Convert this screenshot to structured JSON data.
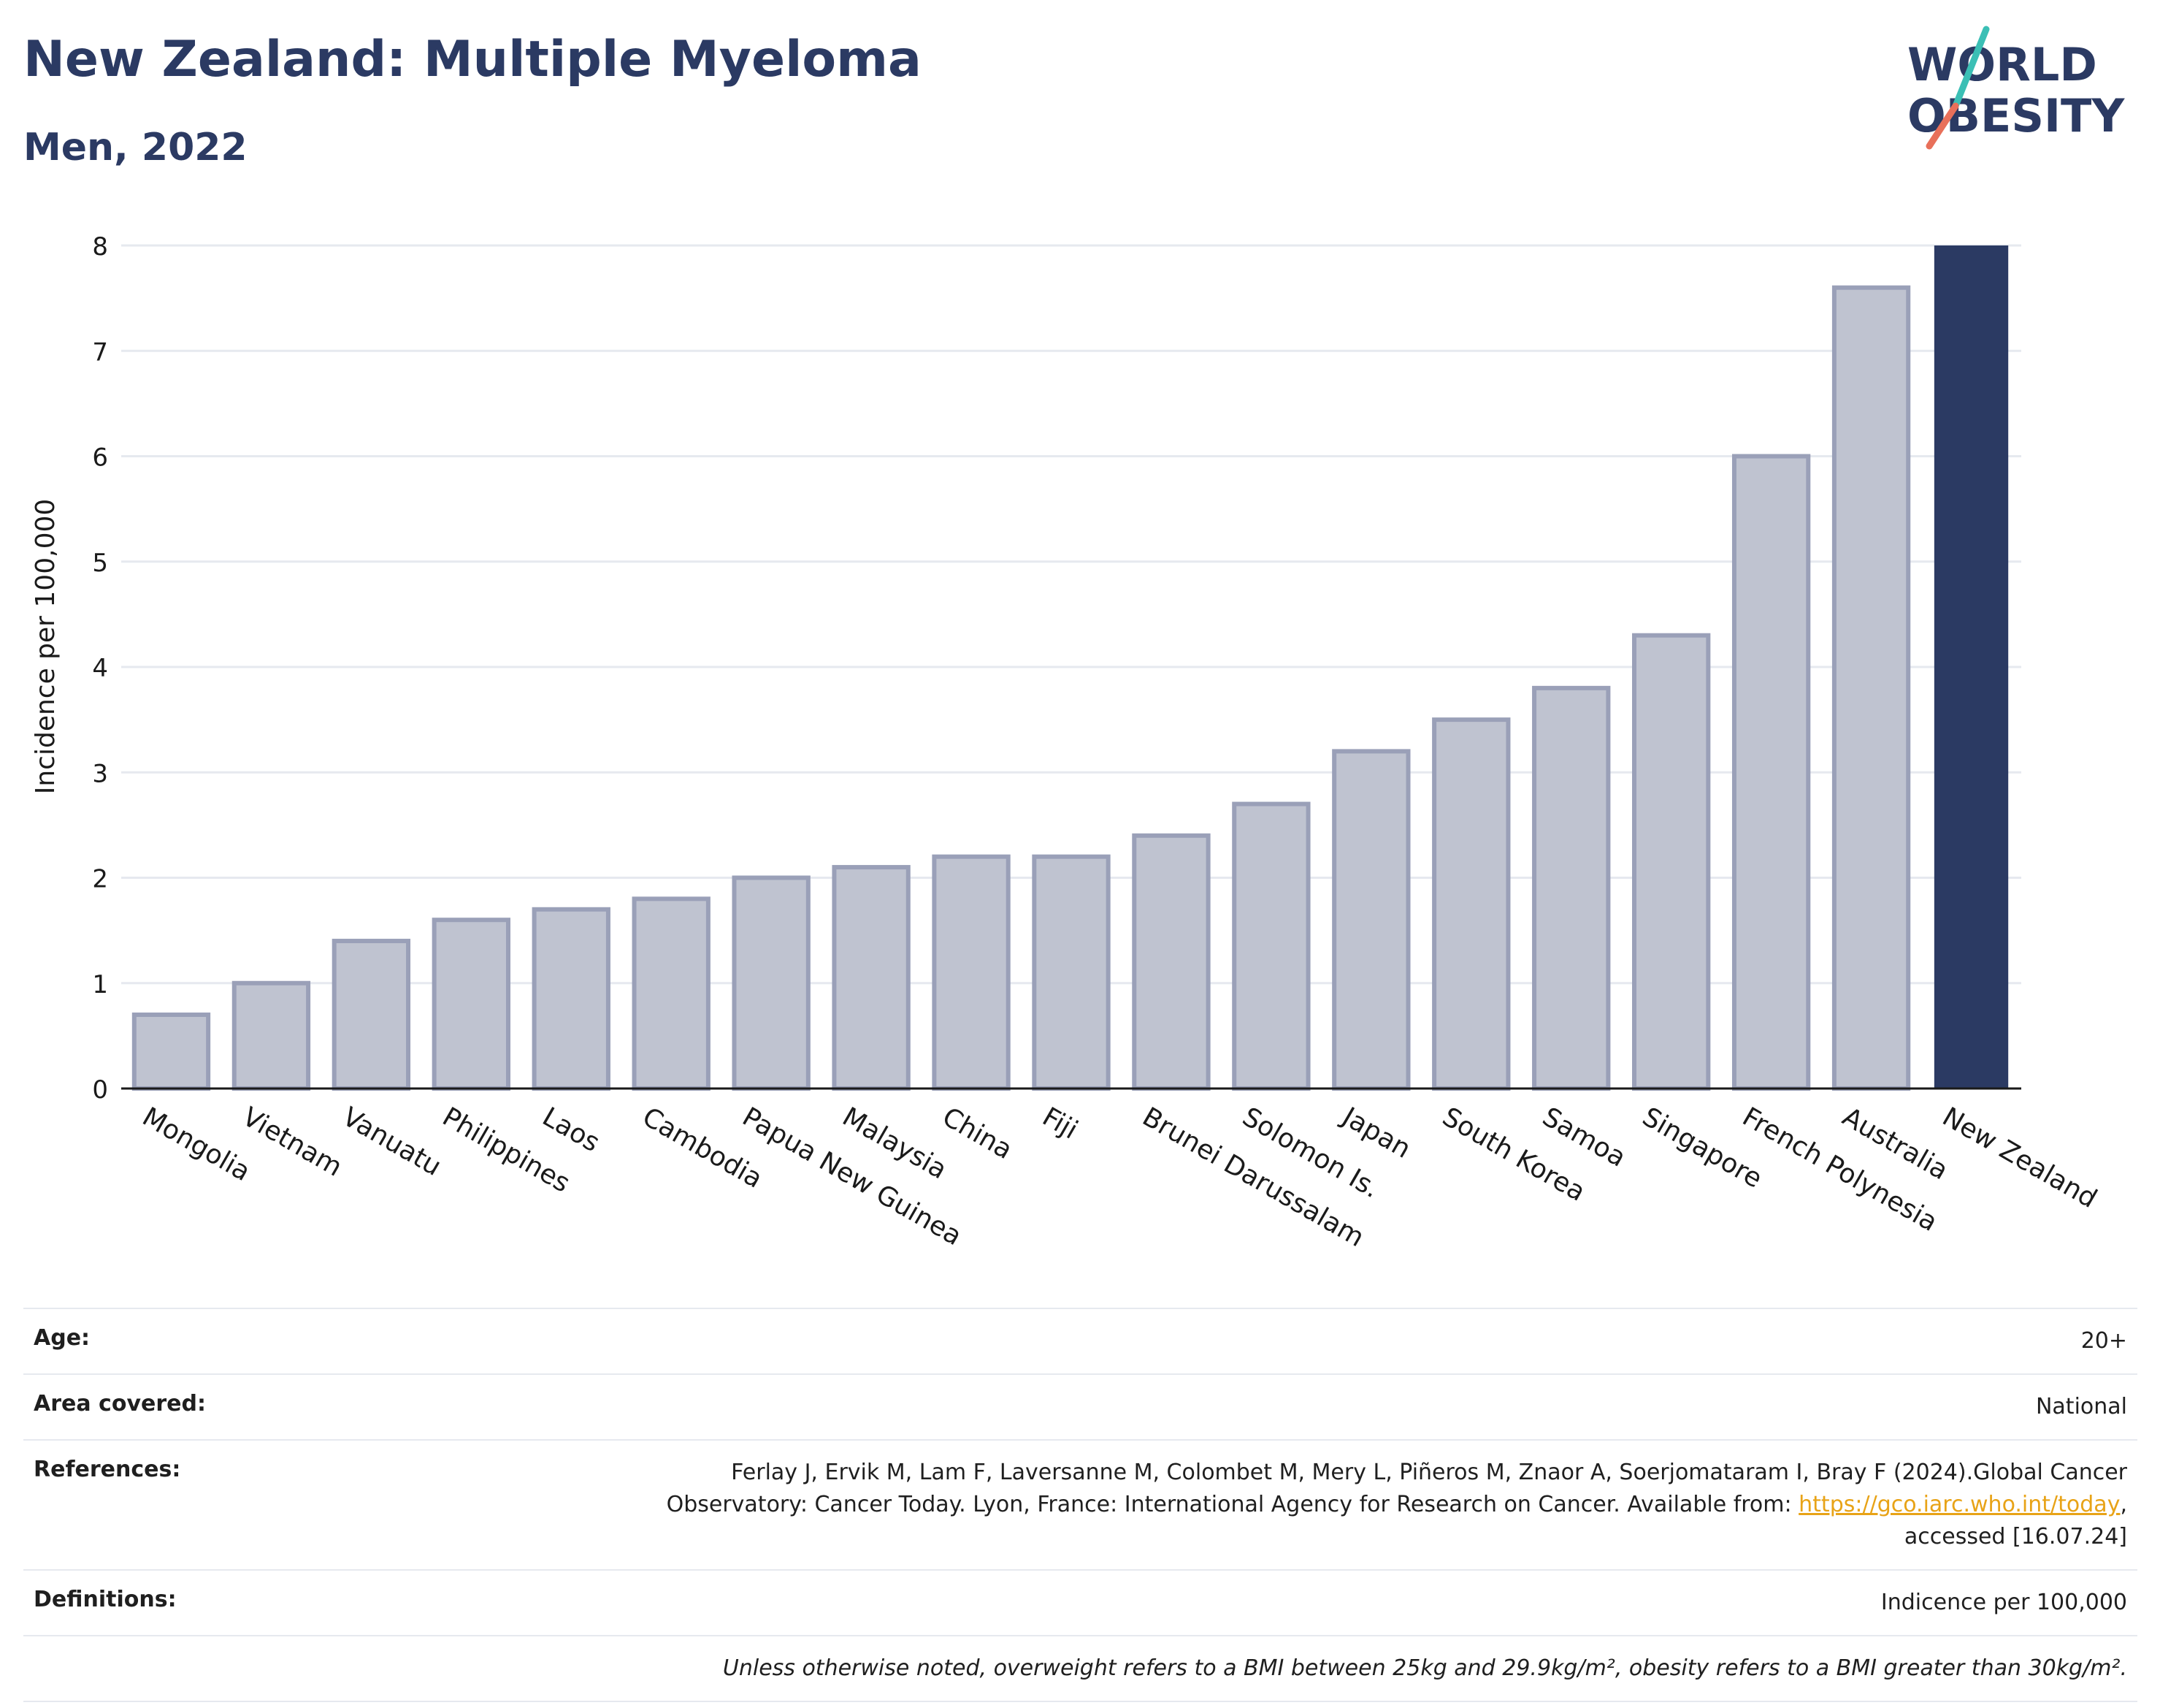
{
  "header": {
    "title": "New Zealand: Multiple Myeloma",
    "subtitle": "Men, 2022"
  },
  "logo": {
    "line1": "WORLD",
    "line2": "OBESITY",
    "text_color": "#2b3a63",
    "slash_color_top": "#3bbfb5",
    "slash_color_bottom": "#e8705a"
  },
  "chart_data": {
    "type": "bar",
    "ylabel": "Incidence per 100,000",
    "xlabel": "",
    "ylim": [
      0,
      8
    ],
    "yticks": [
      0,
      1,
      2,
      3,
      4,
      5,
      6,
      7,
      8
    ],
    "grid": true,
    "categories": [
      "Mongolia",
      "Vietnam",
      "Vanuatu",
      "Philippines",
      "Laos",
      "Cambodia",
      "Papua New Guinea",
      "Malaysia",
      "China",
      "Fiji",
      "Brunei Darussalam",
      "Solomon Is.",
      "Japan",
      "South Korea",
      "Samoa",
      "Singapore",
      "French Polynesia",
      "Australia",
      "New Zealand"
    ],
    "values": [
      0.7,
      1.0,
      1.4,
      1.6,
      1.7,
      1.8,
      2.0,
      2.1,
      2.2,
      2.2,
      2.4,
      2.7,
      3.2,
      3.5,
      3.8,
      4.3,
      6.0,
      7.6,
      8.0
    ],
    "highlight": "New Zealand",
    "colors": {
      "bar": "#bfc3d0",
      "bar_border": "#9aa0b8",
      "highlight": "#2b3a63",
      "grid": "#e6e9ef",
      "axis": "#1a1a1a"
    }
  },
  "info_table": {
    "age_label": "Age:",
    "age_value": "20+",
    "area_label": "Area covered:",
    "area_value": "National",
    "references_label": "References:",
    "references_text1": "Ferlay J, Ervik M, Lam F, Laversanne M, Colombet M, Mery L, Piñeros M, Znaor A, Soerjomataram I, Bray F (2024).Global Cancer Observatory: Cancer Today. Lyon, France: International Agency for Research on Cancer. Available from: ",
    "references_link": "https://gco.iarc.who.int/today",
    "references_text2": ", accessed [16.07.24]",
    "definitions_label": "Definitions:",
    "definitions_value": "Indicence per 100,000",
    "note": "Unless otherwise noted, overweight refers to a BMI between 25kg and 29.9kg/m², obesity refers to a BMI greater than 30kg/m²."
  }
}
